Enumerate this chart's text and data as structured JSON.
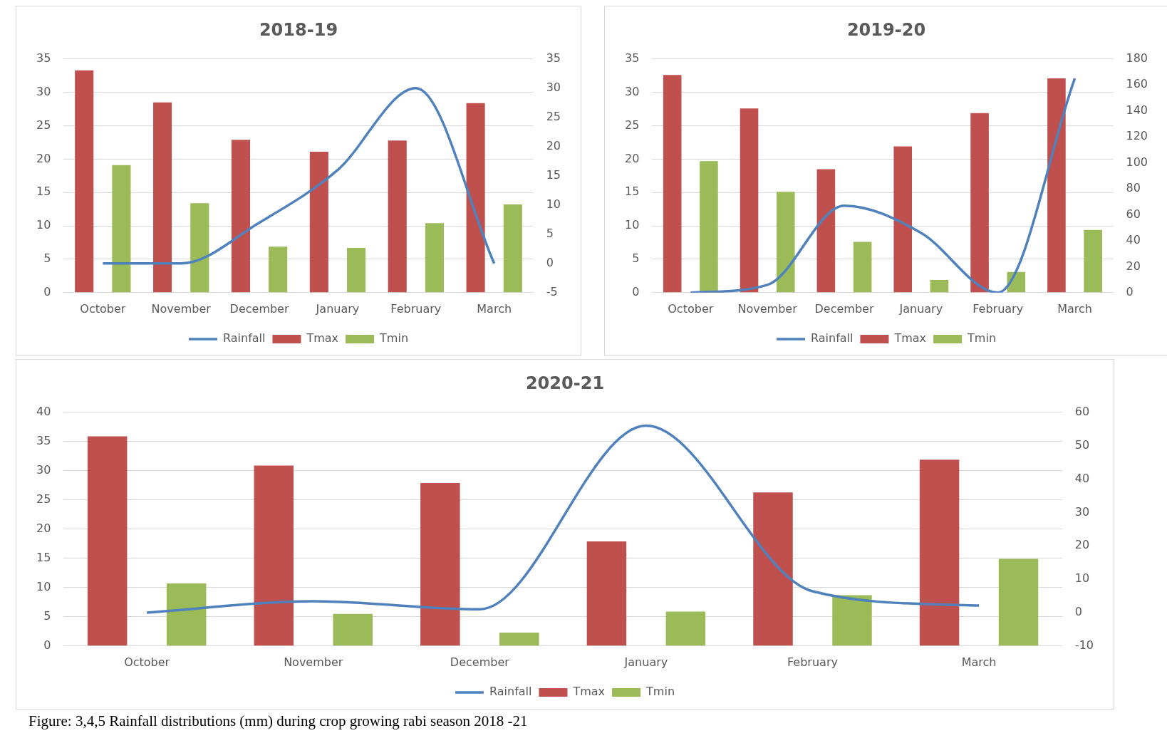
{
  "chart_data": [
    {
      "type": "bar",
      "title": "2018-19",
      "categories": [
        "October",
        "November",
        "December",
        "January",
        "February",
        "March"
      ],
      "series": [
        {
          "name": "Tmax",
          "color": "#c0504d",
          "values": [
            33.3,
            28.5,
            22.9,
            21.1,
            22.8,
            28.4
          ]
        },
        {
          "name": "Tmin",
          "color": "#9bbb59",
          "values": [
            19.1,
            13.4,
            6.9,
            6.7,
            10.4,
            13.2
          ]
        },
        {
          "name": "Rainfall",
          "type": "line",
          "axis": "y2",
          "color": "#4f81bd",
          "values": [
            0,
            0,
            7,
            16,
            30,
            0
          ]
        }
      ],
      "ylim": [
        0,
        35
      ],
      "yticks": [
        0,
        5,
        10,
        15,
        20,
        25,
        30,
        35
      ],
      "y2lim": [
        -5,
        35
      ],
      "y2ticks": [
        -5,
        0,
        5,
        10,
        15,
        20,
        25,
        30,
        35
      ],
      "grid": "y",
      "legend": "bottom",
      "marker": "none"
    },
    {
      "type": "bar",
      "title": "2019-20",
      "categories": [
        "October",
        "November",
        "December",
        "January",
        "February",
        "March"
      ],
      "series": [
        {
          "name": "Tmax",
          "color": "#c0504d",
          "values": [
            32.6,
            27.6,
            18.5,
            21.9,
            26.9,
            32.1
          ]
        },
        {
          "name": "Tmin",
          "color": "#9bbb59",
          "values": [
            19.7,
            15.1,
            7.6,
            1.9,
            3.1,
            9.4
          ]
        },
        {
          "name": "Rainfall",
          "type": "line",
          "axis": "y2",
          "color": "#4f81bd",
          "values": [
            0,
            6,
            67,
            46,
            0,
            165
          ]
        }
      ],
      "ylim": [
        0,
        35
      ],
      "yticks": [
        0,
        5,
        10,
        15,
        20,
        25,
        30,
        35
      ],
      "y2lim": [
        0,
        180
      ],
      "y2ticks": [
        0,
        20,
        40,
        60,
        80,
        100,
        120,
        140,
        160,
        180
      ],
      "grid": "y",
      "legend": "bottom",
      "marker": "none"
    },
    {
      "type": "bar",
      "title": "2020-21",
      "categories": [
        "October",
        "November",
        "December",
        "January",
        "February",
        "March"
      ],
      "series": [
        {
          "name": "Tmax",
          "color": "#c0504d",
          "values": [
            35.9,
            30.9,
            27.9,
            17.9,
            26.3,
            31.9
          ]
        },
        {
          "name": "Tmin",
          "color": "#9bbb59",
          "values": [
            10.7,
            5.5,
            2.3,
            5.9,
            8.7,
            14.9
          ]
        },
        {
          "name": "Rainfall",
          "type": "line",
          "axis": "y2",
          "color": "#4f81bd",
          "values": [
            0,
            3.4,
            1,
            56,
            6.4,
            2.1
          ]
        }
      ],
      "ylim": [
        0,
        40
      ],
      "yticks": [
        0,
        5,
        10,
        15,
        20,
        25,
        30,
        35,
        40
      ],
      "y2lim": [
        -10,
        60
      ],
      "y2ticks": [
        -10,
        0,
        10,
        20,
        30,
        40,
        50,
        60
      ],
      "grid": "y",
      "legend": "bottom",
      "marker": "none",
      "annotations": [
        "Figure: 3,4,5  Rainfall distributions (mm) during crop growing rabi season 2018 -21"
      ]
    }
  ]
}
